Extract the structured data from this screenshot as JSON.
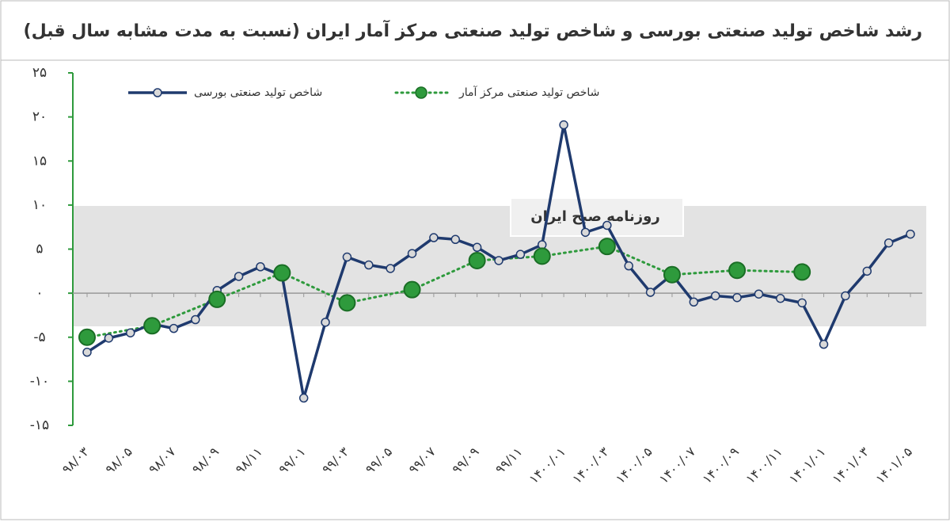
{
  "chart_data": {
    "type": "line",
    "title": "رشد شاخص تولید صنعتی بورسی  و شاخص تولید صنعتی مرکز آمار ایران (نسبت به مدت مشابه سال قبل)",
    "watermark": "روزنامه صبح ایران",
    "categories": [
      "۹۸/۰۳",
      null,
      "۹۸/۰۵",
      null,
      "۹۸/۰۷",
      null,
      "۹۸/۰۹",
      null,
      "۹۸/۱۱",
      null,
      "۹۹/۰۱",
      null,
      "۹۹/۰۳",
      null,
      "۹۹/۰۵",
      null,
      "۹۹/۰۷",
      null,
      "۹۹/۰۹",
      null,
      "۹۹/۱۱",
      null,
      "۱۴۰۰/۰۱",
      null,
      "۱۴۰۰/۰۳",
      null,
      "۱۴۰۰/۰۵",
      null,
      "۱۴۰۰/۰۷",
      null,
      "۱۴۰۰/۰۹",
      null,
      "۱۴۰۰/۱۱",
      null,
      "۱۴۰۱/۰۱",
      null,
      "۱۴۰۱/۰۳",
      null,
      "۱۴۰۱/۰۵"
    ],
    "series": [
      {
        "name": "شاخص تولید صنعتی بورسی",
        "color": "#1f3a6e",
        "values": [
          -6.7,
          -5.1,
          -4.5,
          -3.5,
          -4.0,
          -3.0,
          0.3,
          1.9,
          3.0,
          2.0,
          -11.9,
          -3.3,
          4.1,
          3.2,
          2.8,
          4.5,
          6.3,
          6.1,
          5.2,
          3.7,
          4.4,
          5.5,
          19.1,
          6.9,
          7.7,
          3.1,
          0.1,
          2.1,
          -1.0,
          -0.3,
          -0.5,
          -0.1,
          -0.6,
          -1.1,
          -5.8,
          -0.3,
          2.5,
          5.7,
          6.7
        ]
      },
      {
        "name": "شاخص تولید صنعتی مرکز آمار",
        "color": "#2e9a3c",
        "values": [
          -5.0,
          null,
          null,
          -3.7,
          null,
          null,
          -0.7,
          null,
          null,
          2.3,
          null,
          null,
          -1.1,
          null,
          null,
          0.4,
          null,
          null,
          3.7,
          null,
          null,
          4.2,
          null,
          null,
          5.3,
          null,
          null,
          2.1,
          null,
          null,
          2.6,
          null,
          null,
          2.4,
          null,
          null,
          null,
          null,
          null
        ]
      }
    ],
    "ylim": [
      -15,
      25
    ],
    "yticks": [
      {
        "value": 25,
        "label": "۲۵"
      },
      {
        "value": 20,
        "label": "۲۰"
      },
      {
        "value": 15,
        "label": "۱۵"
      },
      {
        "value": 10,
        "label": "۱۰"
      },
      {
        "value": 5,
        "label": "۵"
      },
      {
        "value": 0,
        "label": "۰"
      },
      {
        "value": -5,
        "label": "-۵"
      },
      {
        "value": -10,
        "label": "-۱۰"
      },
      {
        "value": -15,
        "label": "-۱۵"
      }
    ]
  }
}
